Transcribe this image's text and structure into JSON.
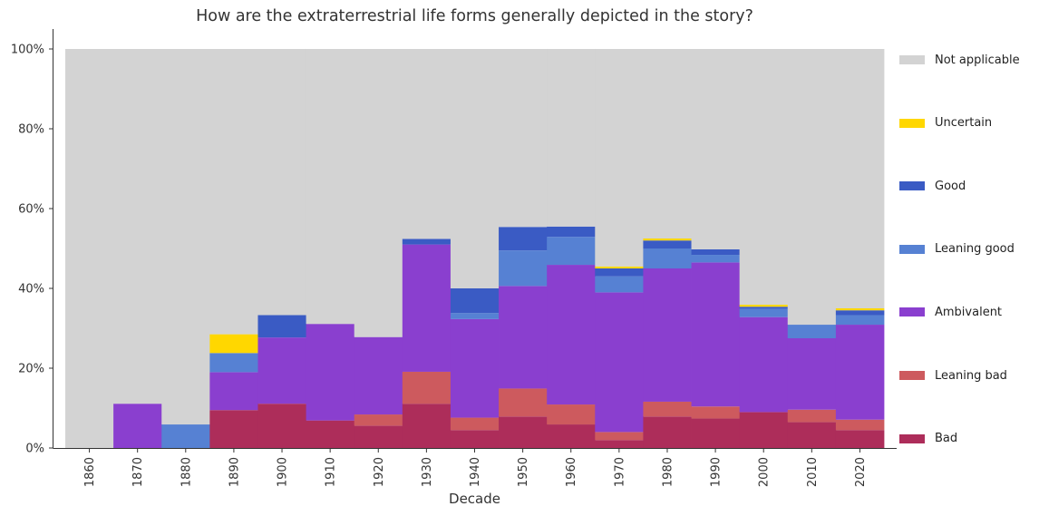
{
  "chart_data": {
    "type": "bar",
    "stacked": true,
    "title": "How are the extraterrestrial life forms generally depicted in the story?",
    "xlabel": "Decade",
    "ylabel": "",
    "ylim": [
      0,
      100
    ],
    "yticks": [
      "0%",
      "20%",
      "40%",
      "60%",
      "80%",
      "100%"
    ],
    "categories": [
      "1860",
      "1870",
      "1880",
      "1890",
      "1900",
      "1910",
      "1920",
      "1930",
      "1940",
      "1950",
      "1960",
      "1970",
      "1980",
      "1990",
      "2000",
      "2010",
      "2020"
    ],
    "legend_position": "right",
    "grid": false,
    "series": [
      {
        "name": "Bad",
        "color": "#ad2d5a",
        "values": [
          0,
          0,
          0,
          9.5,
          11.1,
          6.9,
          5.6,
          11.1,
          4.5,
          7.9,
          5.9,
          2.0,
          7.9,
          7.4,
          9.0,
          6.5,
          4.5
        ]
      },
      {
        "name": "Leaning bad",
        "color": "#cd5a5e",
        "values": [
          0,
          0,
          0,
          0,
          0,
          0,
          2.8,
          8.0,
          3.1,
          7.0,
          5.0,
          2.0,
          3.7,
          3.0,
          0,
          3.1,
          2.6
        ]
      },
      {
        "name": "Ambivalent",
        "color": "#8a3fcf",
        "values": [
          0,
          11.1,
          0,
          9.5,
          16.6,
          24.2,
          19.4,
          31.9,
          24.7,
          25.7,
          35.0,
          35.0,
          33.4,
          36.1,
          23.8,
          17.9,
          23.8
        ]
      },
      {
        "name": "Leaning good",
        "color": "#5681d3",
        "values": [
          0,
          0,
          5.9,
          4.8,
          0,
          0,
          0,
          0,
          1.5,
          8.9,
          7.0,
          4.0,
          5.0,
          1.9,
          2.1,
          3.4,
          2.4
        ]
      },
      {
        "name": "Good",
        "color": "#3a5bc4",
        "values": [
          0,
          0,
          0,
          0,
          5.6,
          0,
          0,
          1.4,
          6.2,
          5.9,
          2.6,
          2.0,
          2.0,
          1.4,
          0.5,
          0,
          1.2
        ]
      },
      {
        "name": "Uncertain",
        "color": "#ffd700",
        "values": [
          0,
          0,
          0,
          4.7,
          0,
          0,
          0,
          0,
          0,
          0,
          0,
          0.5,
          0.5,
          0,
          0.5,
          0,
          0.5
        ]
      },
      {
        "name": "Not applicable",
        "color": "#d3d3d3",
        "values": [
          100,
          88.9,
          94.1,
          71.5,
          66.7,
          68.9,
          72.2,
          47.6,
          60.0,
          44.6,
          44.5,
          54.5,
          47.5,
          50.2,
          64.1,
          69.1,
          65.0
        ]
      }
    ]
  }
}
